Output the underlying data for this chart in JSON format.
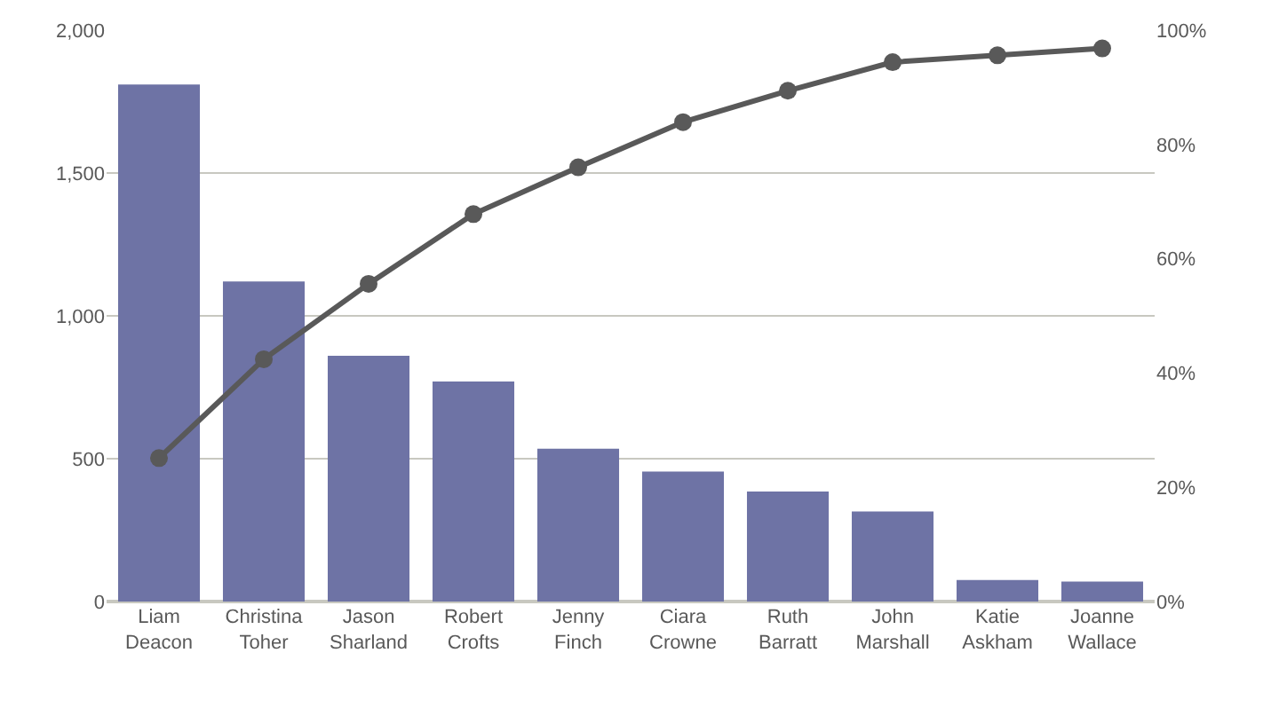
{
  "chart_data": {
    "type": "bar",
    "categories": [
      "Liam Deacon",
      "Christina Toher",
      "Jason Sharland",
      "Robert Crofts",
      "Jenny Finch",
      "Ciara Crowne",
      "Ruth Barratt",
      "John Marshall",
      "Katie Askham",
      "Joanne Wallace"
    ],
    "series": [
      {
        "color": "#6e73a5",
        "values": [
          1810,
          1120,
          860,
          770,
          535,
          455,
          385,
          315,
          75,
          70
        ]
      },
      {
        "type": "line",
        "axis": "y2",
        "color": "#595959",
        "marker": "circle",
        "line_style": "solid",
        "values": [
          25.1,
          42.4,
          55.6,
          67.8,
          76.0,
          83.9,
          89.4,
          94.4,
          95.6,
          96.8
        ]
      }
    ],
    "ylim": [
      0,
      2000
    ],
    "yticks": [
      0,
      500,
      {
        "value": 1000,
        "label": "1,000"
      },
      {
        "value": 1500,
        "label": "1,500"
      },
      {
        "value": 2000,
        "label": "2,000"
      }
    ],
    "y2lim": [
      0,
      100
    ],
    "y2ticks": [
      {
        "value": 0,
        "label": "0%"
      },
      {
        "value": 20,
        "label": "20%"
      },
      {
        "value": 40,
        "label": "40%"
      },
      {
        "value": 60,
        "label": "60%"
      },
      {
        "value": 80,
        "label": "80%"
      },
      {
        "value": 100,
        "label": "100%"
      }
    ],
    "grid": "y",
    "legend": false
  }
}
